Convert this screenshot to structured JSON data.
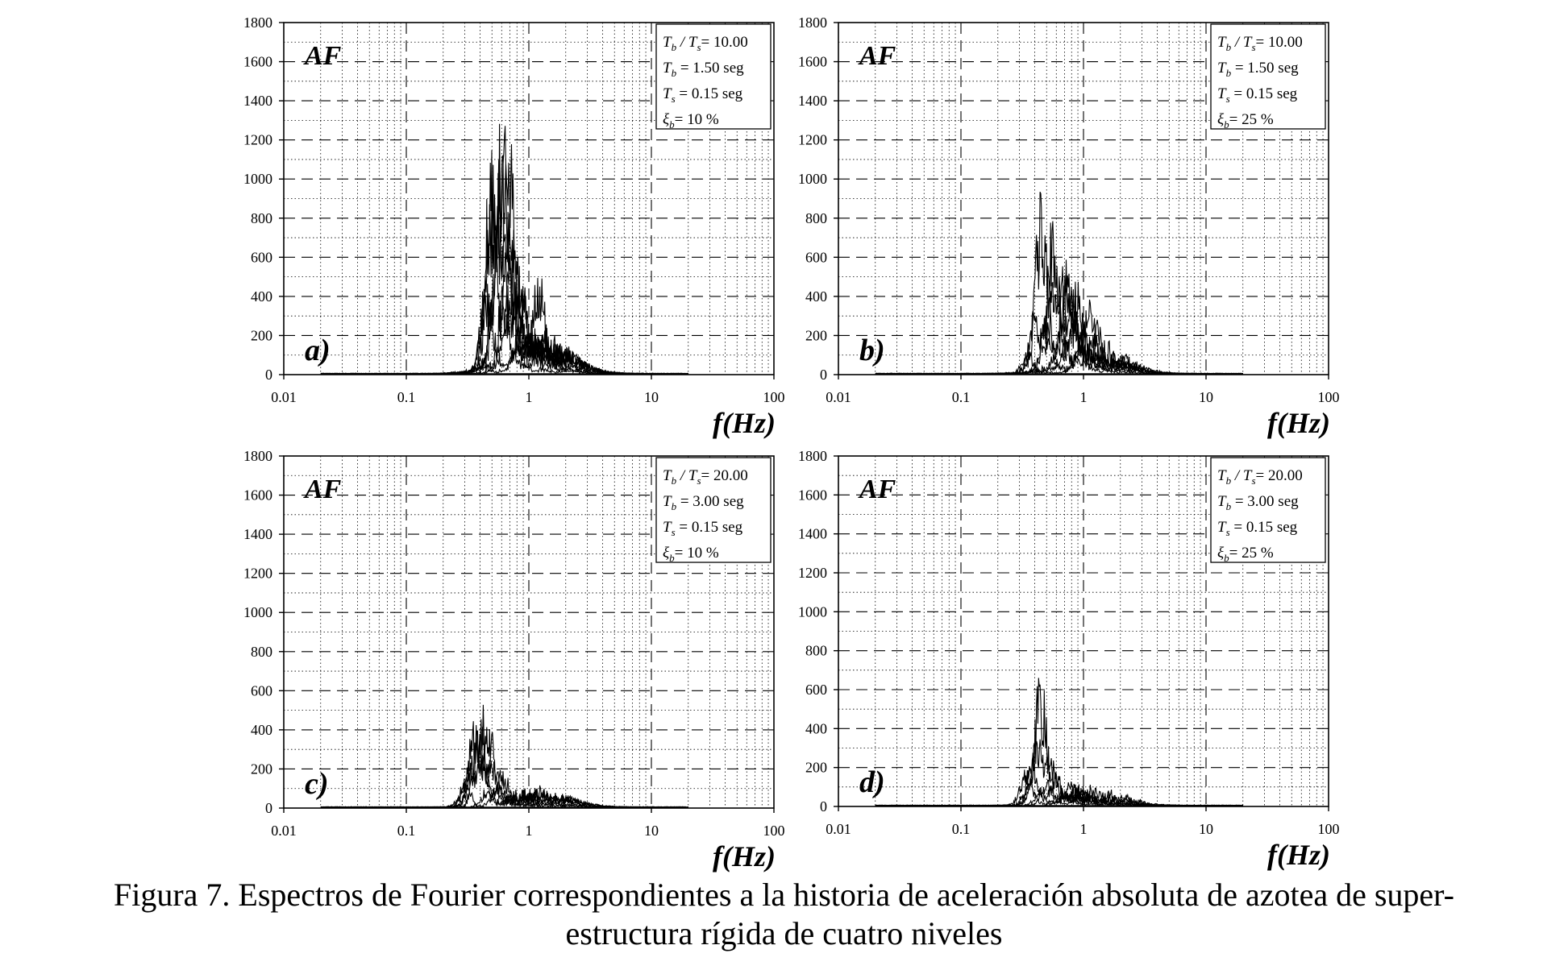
{
  "figure": {
    "caption_line1": "Figura 7. Espectros de Fourier correspondientes a la historia de aceleración absoluta de azotea de super-",
    "caption_line2": "estructura rígida de cuatro niveles"
  },
  "chart_data": [
    {
      "type": "line",
      "panel_label": "a)",
      "corner_label": "AF",
      "xlabel": "f(Hz)",
      "xscale": "log",
      "xlim": [
        0.01,
        100
      ],
      "x_ticks": [
        "0.01",
        "0.1",
        "1",
        "10",
        "100"
      ],
      "ylim": [
        0,
        1800
      ],
      "y_ticks": [
        "0",
        "200",
        "400",
        "600",
        "800",
        "1000",
        "1200",
        "1400",
        "1600",
        "1800"
      ],
      "grid": true,
      "legend_position": "top-right",
      "legend": [
        {
          "main": "T",
          "sub": "b",
          "mid": " / T",
          "sub2": "s",
          "rest": "= 10.00"
        },
        {
          "main": "T",
          "sub": "b",
          "rest": " = 1.50 seg"
        },
        {
          "main": "T",
          "sub": "s",
          "rest": " = 0.15 seg"
        },
        {
          "main": "ξ",
          "sub": "b",
          "rest": "= 10 %"
        }
      ],
      "series": [
        {
          "peaks": [
            {
              "f": 0.62,
              "a": 1180
            },
            {
              "f": 0.48,
              "a": 900
            }
          ]
        },
        {
          "peaks": [
            {
              "f": 0.7,
              "a": 1150
            },
            {
              "f": 0.55,
              "a": 700
            }
          ]
        },
        {
          "peaks": [
            {
              "f": 0.5,
              "a": 1090
            },
            {
              "f": 0.75,
              "a": 600
            }
          ]
        },
        {
          "peaks": [
            {
              "f": 0.58,
              "a": 1140
            },
            {
              "f": 0.85,
              "a": 450
            }
          ]
        },
        {
          "peaks": [
            {
              "f": 0.68,
              "a": 850
            },
            {
              "f": 1.2,
              "a": 420
            }
          ]
        },
        {
          "peaks": [
            {
              "f": 0.45,
              "a": 500
            },
            {
              "f": 0.9,
              "a": 350
            }
          ]
        },
        {
          "peaks": [
            {
              "f": 0.65,
              "a": 300
            },
            {
              "f": 1.3,
              "a": 180
            }
          ]
        },
        {
          "peaks": [
            {
              "f": 0.8,
              "a": 160
            },
            {
              "f": 0.4,
              "a": 90
            }
          ]
        }
      ]
    },
    {
      "type": "line",
      "panel_label": "b)",
      "corner_label": "AF",
      "xlabel": "f(Hz)",
      "xscale": "log",
      "xlim": [
        0.01,
        100
      ],
      "x_ticks": [
        "0.01",
        "0.1",
        "1",
        "10",
        "100"
      ],
      "ylim": [
        0,
        1800
      ],
      "y_ticks": [
        "0",
        "200",
        "400",
        "600",
        "800",
        "1000",
        "1200",
        "1400",
        "1600",
        "1800"
      ],
      "grid": true,
      "legend_position": "top-right",
      "legend": [
        {
          "main": "T",
          "sub": "b",
          "mid": " / T",
          "sub2": "s",
          "rest": "= 10.00"
        },
        {
          "main": "T",
          "sub": "b",
          "rest": " = 1.50 seg"
        },
        {
          "main": "T",
          "sub": "s",
          "rest": " = 0.15 seg"
        },
        {
          "main": "ξ",
          "sub": "b",
          "rest": "= 25 %"
        }
      ],
      "series": [
        {
          "peaks": [
            {
              "f": 0.45,
              "a": 960
            },
            {
              "f": 0.75,
              "a": 500
            }
          ]
        },
        {
          "peaks": [
            {
              "f": 0.55,
              "a": 760
            },
            {
              "f": 0.9,
              "a": 380
            }
          ]
        },
        {
          "peaks": [
            {
              "f": 0.72,
              "a": 620
            },
            {
              "f": 1.1,
              "a": 300
            }
          ]
        },
        {
          "peaks": [
            {
              "f": 0.6,
              "a": 580
            },
            {
              "f": 0.4,
              "a": 350
            }
          ]
        },
        {
          "peaks": [
            {
              "f": 0.8,
              "a": 420
            },
            {
              "f": 1.3,
              "a": 250
            }
          ]
        },
        {
          "peaks": [
            {
              "f": 0.5,
              "a": 300
            },
            {
              "f": 1.0,
              "a": 200
            }
          ]
        },
        {
          "peaks": [
            {
              "f": 0.35,
              "a": 120
            },
            {
              "f": 0.95,
              "a": 150
            }
          ]
        }
      ]
    },
    {
      "type": "line",
      "panel_label": "c)",
      "corner_label": "AF",
      "xlabel": "f(Hz)",
      "xscale": "log",
      "xlim": [
        0.01,
        100
      ],
      "x_ticks": [
        "0.01",
        "0.1",
        "1",
        "10",
        "100"
      ],
      "ylim": [
        0,
        1800
      ],
      "y_ticks": [
        "0",
        "200",
        "400",
        "600",
        "800",
        "1000",
        "1200",
        "1400",
        "1600",
        "1800"
      ],
      "grid": true,
      "legend_position": "top-right",
      "legend": [
        {
          "main": "T",
          "sub": "b",
          "mid": " / T",
          "sub2": "s",
          "rest": "= 20.00"
        },
        {
          "main": "T",
          "sub": "b",
          "rest": " = 3.00 seg"
        },
        {
          "main": "T",
          "sub": "s",
          "rest": " = 0.15 seg"
        },
        {
          "main": "ξ",
          "sub": "b",
          "rest": "= 10 %"
        }
      ],
      "series": [
        {
          "peaks": [
            {
              "f": 0.46,
              "a": 520
            },
            {
              "f": 0.36,
              "a": 300
            }
          ]
        },
        {
          "peaks": [
            {
              "f": 0.36,
              "a": 480
            },
            {
              "f": 0.5,
              "a": 250
            }
          ]
        },
        {
          "peaks": [
            {
              "f": 0.4,
              "a": 440
            },
            {
              "f": 0.6,
              "a": 150
            }
          ]
        },
        {
          "peaks": [
            {
              "f": 0.42,
              "a": 300
            },
            {
              "f": 0.32,
              "a": 200
            }
          ]
        },
        {
          "peaks": [
            {
              "f": 0.3,
              "a": 150
            },
            {
              "f": 0.55,
              "a": 120
            }
          ]
        },
        {
          "peaks": [
            {
              "f": 0.45,
              "a": 90
            },
            {
              "f": 0.7,
              "a": 60
            }
          ]
        }
      ]
    },
    {
      "type": "line",
      "panel_label": "d)",
      "corner_label": "AF",
      "xlabel": "f(Hz)",
      "xscale": "log",
      "xlim": [
        0.01,
        100
      ],
      "x_ticks": [
        "0.01",
        "0.1",
        "1",
        "10",
        "100"
      ],
      "ylim": [
        0,
        1800
      ],
      "y_ticks": [
        "0",
        "200",
        "400",
        "600",
        "800",
        "1000",
        "1200",
        "1400",
        "1600",
        "1800"
      ],
      "grid": true,
      "legend_position": "top-right",
      "legend": [
        {
          "main": "T",
          "sub": "b",
          "mid": " / T",
          "sub2": "s",
          "rest": "= 20.00"
        },
        {
          "main": "T",
          "sub": "b",
          "rest": " = 3.00 seg"
        },
        {
          "main": "T",
          "sub": "s",
          "rest": " = 0.15 seg"
        },
        {
          "main": "ξ",
          "sub": "b",
          "rest": "= 25 %"
        }
      ],
      "series": [
        {
          "peaks": [
            {
              "f": 0.46,
              "a": 530
            },
            {
              "f": 0.4,
              "a": 250
            }
          ]
        },
        {
          "peaks": [
            {
              "f": 0.42,
              "a": 380
            },
            {
              "f": 0.55,
              "a": 200
            }
          ]
        },
        {
          "peaks": [
            {
              "f": 0.38,
              "a": 260
            },
            {
              "f": 0.6,
              "a": 150
            }
          ]
        },
        {
          "peaks": [
            {
              "f": 0.34,
              "a": 200
            },
            {
              "f": 0.8,
              "a": 110
            }
          ]
        },
        {
          "peaks": [
            {
              "f": 0.5,
              "a": 130
            },
            {
              "f": 1.0,
              "a": 90
            }
          ]
        },
        {
          "peaks": [
            {
              "f": 0.44,
              "a": 80
            },
            {
              "f": 0.7,
              "a": 60
            }
          ]
        }
      ]
    }
  ]
}
